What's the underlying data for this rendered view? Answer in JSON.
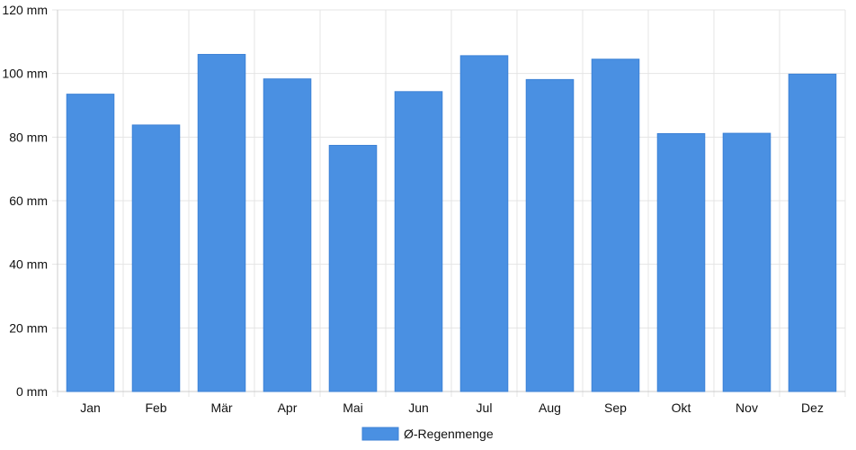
{
  "chart_data": {
    "type": "bar",
    "categories": [
      "Jan",
      "Feb",
      "Mär",
      "Apr",
      "Mai",
      "Jun",
      "Jul",
      "Aug",
      "Sep",
      "Okt",
      "Nov",
      "Dez"
    ],
    "series": [
      {
        "name": "Ø-Regenmenge",
        "values": [
          93.5,
          83.8,
          106.0,
          98.3,
          77.4,
          94.3,
          105.6,
          98.1,
          104.5,
          81.1,
          81.2,
          99.8
        ],
        "color": "#4a90e2"
      }
    ],
    "y_unit": "mm",
    "ylim": [
      0,
      120
    ],
    "yticks": [
      0,
      20,
      40,
      60,
      80,
      100,
      120
    ],
    "grid": true,
    "legend": "bottom-center"
  }
}
